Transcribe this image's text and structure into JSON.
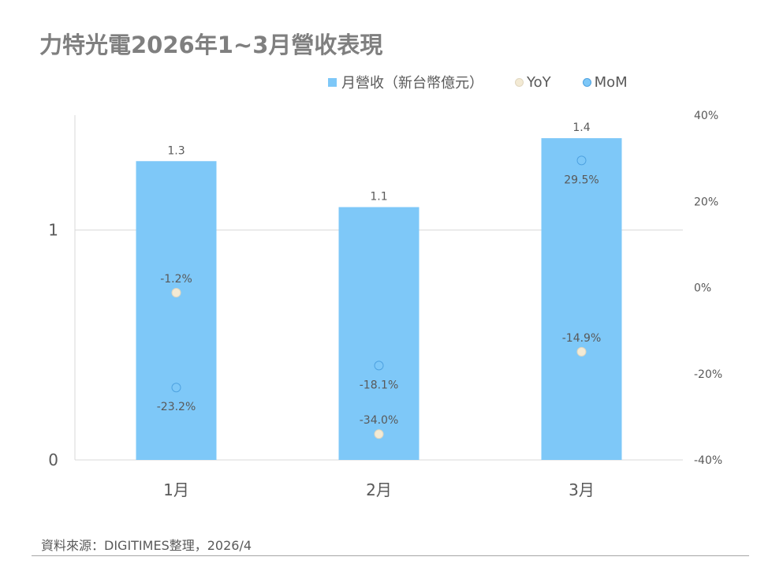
{
  "title": "力特光電2026年1~3月營收表現",
  "source": "資料來源：DIGITIMES整理，2026/4",
  "colors": {
    "bar": "#7ec8f8",
    "yoy": "#f3ead4",
    "mom": "#7ec8f8",
    "mom_stroke": "#4ea2e0",
    "yoy_stroke": "#e0d6bf"
  },
  "chart_data": {
    "type": "bar",
    "categories": [
      "1月",
      "2月",
      "3月"
    ],
    "series": [
      {
        "name": "月營收（新台幣億元）",
        "type": "bar",
        "axis": "left",
        "values": [
          1.3,
          1.1,
          1.4
        ],
        "labels": [
          "1.3",
          "1.1",
          "1.4"
        ]
      },
      {
        "name": "YoY",
        "type": "scatter",
        "axis": "right",
        "values": [
          -1.2,
          -34.0,
          -14.9
        ],
        "labels": [
          "-1.2%",
          "-34.0%",
          "-14.9%"
        ]
      },
      {
        "name": "MoM",
        "type": "scatter",
        "axis": "right",
        "values": [
          -23.2,
          -18.1,
          29.5
        ],
        "labels": [
          "-23.2%",
          "-18.1%",
          "29.5%"
        ]
      }
    ],
    "left_axis": {
      "ticks": [
        "0",
        "1"
      ],
      "tick_values": [
        0,
        1
      ],
      "ylim": [
        0,
        1.5
      ]
    },
    "right_axis": {
      "ticks": [
        "40%",
        "20%",
        "0%",
        "-20%",
        "-40%"
      ],
      "tick_values": [
        40,
        20,
        0,
        -20,
        -40
      ],
      "ylim": [
        -40,
        40
      ]
    },
    "legend_position": "top-right",
    "gridlines": true
  }
}
